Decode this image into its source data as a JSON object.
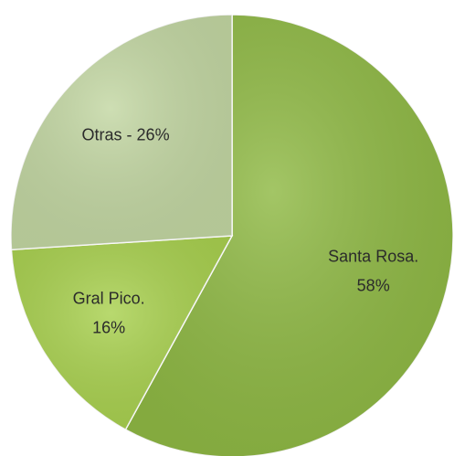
{
  "chart_data": {
    "type": "pie",
    "values": [
      58,
      16,
      26
    ],
    "value_labels": [
      [
        "Santa Rosa.",
        "58%"
      ],
      [
        "Gral Pico.",
        "16%"
      ],
      [
        "Otras - 26%"
      ]
    ],
    "colors": [
      "#8fb944",
      "#a9d14f",
      "#c3d7a3"
    ]
  }
}
